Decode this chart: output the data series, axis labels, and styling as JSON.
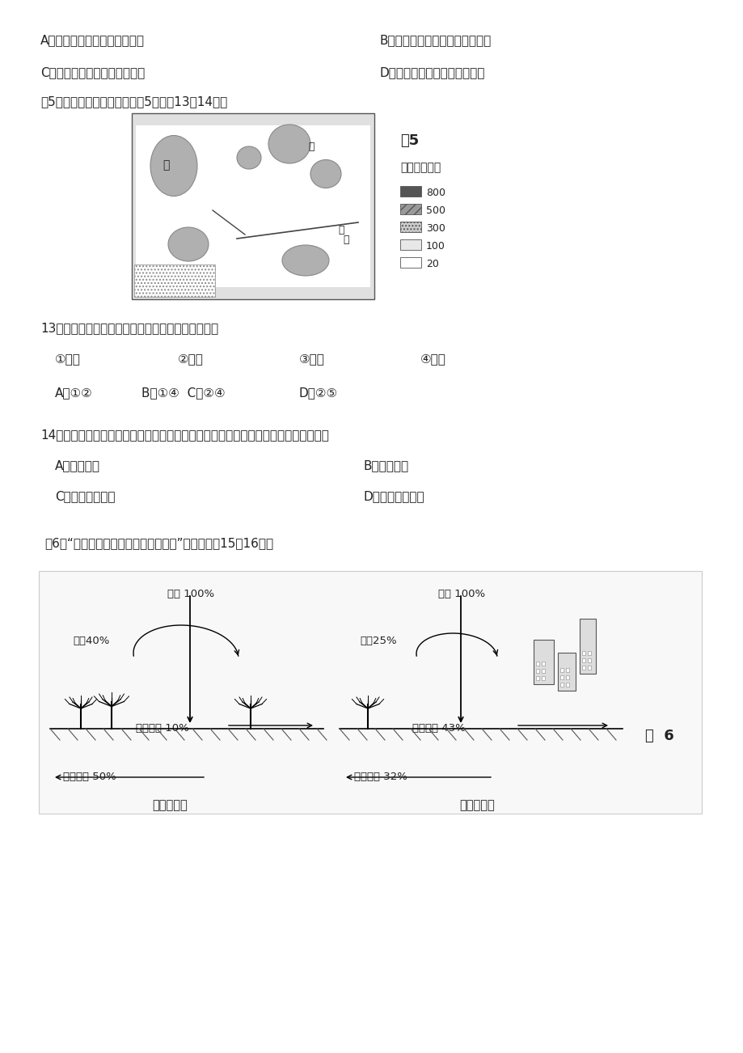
{
  "bg_color": "#ffffff",
  "text_color": "#333333",
  "line1_A": "A．与当地产业发展方向不一致",
  "line1_B": "B．不具有在其他地区推广的价値",
  "line2_C": "C．与现代农业发展要求不相符",
  "line2_D": "D．不适应当地水热条件的变化",
  "fig5_intro": "图5示意某地区人口密度。读图5，完成13～14题。",
  "fig5_label": "图5",
  "legend_title": "人口密度／人",
  "legend_items": [
    "800",
    "500",
    "300",
    "100",
    "20"
  ],
  "q13": "13．该地区人口密度差异的主要影响因素有（　　）",
  "q13_opt1": "①纬度",
  "q13_opt2": "②河流",
  "q13_opt3": "③降水",
  "q13_opt4": "④地形",
  "q13_ans1": "A．①②",
  "q13_ans2": "B．①④  C．②④",
  "q13_ans3": "D．②⑤",
  "q14": "14．甲、乙两地都形成了特大城市，与甲地相比，乙地形成城市的区位优势是（　　）",
  "q14_A": "A．地形平坦",
  "q14_B": "B．水源充足",
  "q14_C": "C．陆路交通方便",
  "q14_D": "D．水陆交通枢纽",
  "fig6_intro": "图6是“某城市建设前后水量平衡示意图”，读图回畇15～16题。",
  "fig6_label": "图  6",
  "before_title": "城市建设前",
  "before_rain": "降水 100%",
  "before_evap": "蔑发40%",
  "before_surface": "地面径流 10%",
  "before_ground": "地下径流 50%",
  "after_title": "城市建设后",
  "after_rain": "降水 100%",
  "after_evap": "蔑发25%",
  "after_surface": "地面径流 43%",
  "after_ground": "地下径流 32%"
}
